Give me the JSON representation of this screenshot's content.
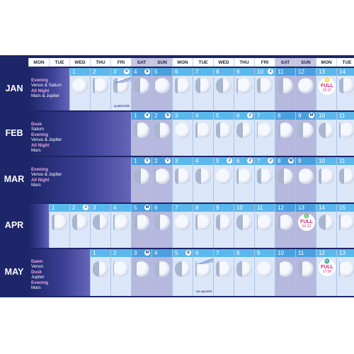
{
  "weekdays": [
    "MON",
    "TUE",
    "WED",
    "THU",
    "FRI",
    "SAT",
    "SUN",
    "MON",
    "TUE",
    "WED",
    "THU",
    "FRI",
    "SAT",
    "SUN",
    "MON",
    "TUE"
  ],
  "months": [
    {
      "name": "JAN",
      "offset": 2,
      "days": [
        "1",
        "2",
        "3",
        "4",
        "5",
        "6",
        "7",
        "8",
        "9",
        "10",
        "11",
        "12",
        "13",
        "14"
      ],
      "visibility": [
        {
          "text": "Evening",
          "pink": true
        },
        {
          "text": "Venus & Saturn",
          "pink": false
        },
        {
          "text": "All Night",
          "pink": true
        },
        {
          "text": "Mars & Jupiter",
          "pink": false
        }
      ],
      "symbols": [
        {
          "day": "3",
          "glyph": "V"
        },
        {
          "day": "4",
          "glyph": "S"
        },
        {
          "day": "10",
          "glyph": "J"
        }
      ],
      "full": {
        "day": "13",
        "sign": "♋",
        "label": "FULL",
        "time": "22:27"
      },
      "shower": {
        "day": "3",
        "text": "quadrantids"
      }
    },
    {
      "name": "FEB",
      "offset": 5,
      "days": [
        "1",
        "2",
        "3",
        "4",
        "5",
        "6",
        "7",
        "8",
        "9",
        "10",
        "11"
      ],
      "visibility": [
        {
          "text": "Dusk",
          "pink": true
        },
        {
          "text": "Saturn",
          "pink": false
        },
        {
          "text": "Evening",
          "pink": true
        },
        {
          "text": "Venus & Jupiter",
          "pink": false
        },
        {
          "text": "All Night",
          "pink": true
        },
        {
          "text": "Mars",
          "pink": false
        }
      ],
      "symbols": [
        {
          "day": "1",
          "glyph": "V"
        },
        {
          "day": "2",
          "glyph": "S"
        },
        {
          "day": "6",
          "glyph": "J"
        },
        {
          "day": "9",
          "glyph": "M"
        }
      ]
    },
    {
      "name": "MAR",
      "offset": 5,
      "days": [
        "1",
        "2",
        "3",
        "4",
        "5",
        "6",
        "7",
        "8",
        "9",
        "10",
        "11"
      ],
      "visibility": [
        {
          "text": "Evening",
          "pink": true
        },
        {
          "text": "Venus & Jupiter",
          "pink": false
        },
        {
          "text": "All Night",
          "pink": true
        },
        {
          "text": "Mars",
          "pink": false
        }
      ],
      "symbols": [
        {
          "day": "1",
          "glyph": "V"
        },
        {
          "day": "2",
          "glyph": "V"
        },
        {
          "day": "5",
          "glyph": "J"
        },
        {
          "day": "6",
          "glyph": "J"
        },
        {
          "day": "7",
          "glyph": "J"
        },
        {
          "day": "8",
          "glyph": "M"
        }
      ]
    },
    {
      "name": "APR",
      "offset": 1,
      "days": [
        "1",
        "2",
        "3",
        "4",
        "5",
        "6",
        "7",
        "8",
        "9",
        "10",
        "11",
        "12",
        "13",
        "14",
        "15"
      ],
      "visibility": [],
      "symbols": [
        {
          "day": "2",
          "glyph": "J"
        },
        {
          "day": "5",
          "glyph": "M"
        }
      ],
      "full": {
        "day": "13",
        "sign": "♎",
        "label": "FULL",
        "time": "01:22"
      }
    },
    {
      "name": "MAY",
      "offset": 3,
      "days": [
        "1",
        "2",
        "3",
        "4",
        "5",
        "6",
        "7",
        "8",
        "9",
        "10",
        "11",
        "12",
        "13"
      ],
      "visibility": [
        {
          "text": "Dawn",
          "pink": true
        },
        {
          "text": "Venus",
          "pink": false
        },
        {
          "text": "Dusk",
          "pink": true
        },
        {
          "text": "Jupiter",
          "pink": false
        },
        {
          "text": "Evening",
          "pink": true
        },
        {
          "text": "Mars",
          "pink": false
        }
      ],
      "symbols": [
        {
          "day": "3",
          "glyph": "M"
        },
        {
          "day": "5",
          "glyph": "S"
        }
      ],
      "full": {
        "day": "12",
        "sign": "♏",
        "label": "FULL",
        "time": "17:56"
      },
      "shower": {
        "day": "6",
        "text": "eta aquarids"
      }
    }
  ],
  "colors": {
    "band": "#1c2668",
    "day_header": "#5bb8ec",
    "cell": "#dbe7f8",
    "weekend": "#b7b8de",
    "full_text": "#d2287a"
  }
}
